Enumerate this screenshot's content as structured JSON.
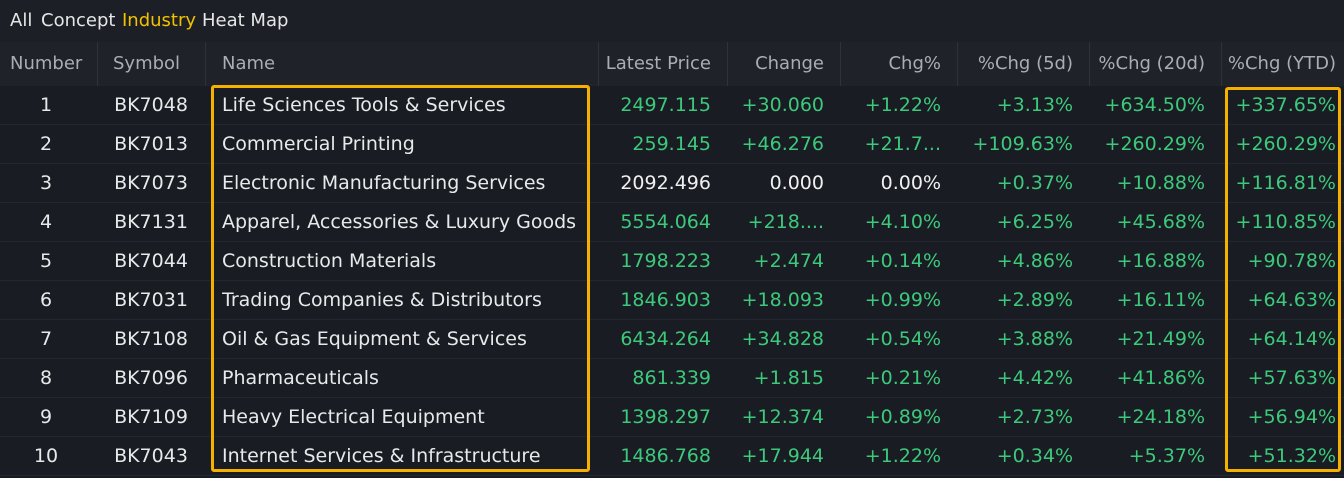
{
  "tabs": [
    "All",
    "Concept",
    "Industry",
    "Heat Map"
  ],
  "active_tab": 2,
  "table": {
    "headers": [
      "Number",
      "Symbol",
      "Name",
      "Latest Price",
      "Change",
      "Chg%",
      "%Chg (5d)",
      "%Chg (20d)",
      "%Chg (YTD)"
    ],
    "rows": [
      [
        "1",
        "BK7048",
        "Life Sciences Tools & Services",
        "2497.115",
        "+30.060",
        "+1.22%",
        "+3.13%",
        "+634.50%",
        "+337.65%"
      ],
      [
        "2",
        "BK7013",
        "Commercial Printing",
        "259.145",
        "+46.276",
        "+21.7...",
        "+109.63%",
        "+260.29%",
        "+260.29%"
      ],
      [
        "3",
        "BK7073",
        "Electronic Manufacturing Services",
        "2092.496",
        "0.000",
        "0.00%",
        "+0.37%",
        "+10.88%",
        "+116.81%"
      ],
      [
        "4",
        "BK7131",
        "Apparel, Accessories & Luxury Goods",
        "5554.064",
        "+218....",
        "+4.10%",
        "+6.25%",
        "+45.68%",
        "+110.85%"
      ],
      [
        "5",
        "BK7044",
        "Construction Materials",
        "1798.223",
        "+2.474",
        "+0.14%",
        "+4.86%",
        "+16.88%",
        "+90.78%"
      ],
      [
        "6",
        "BK7031",
        "Trading Companies & Distributors",
        "1846.903",
        "+18.093",
        "+0.99%",
        "+2.89%",
        "+16.11%",
        "+64.63%"
      ],
      [
        "7",
        "BK7108",
        "Oil & Gas Equipment & Services",
        "6434.264",
        "+34.828",
        "+0.54%",
        "+3.88%",
        "+21.49%",
        "+64.14%"
      ],
      [
        "8",
        "BK7096",
        "Pharmaceuticals",
        "861.339",
        "+1.815",
        "+0.21%",
        "+4.42%",
        "+41.86%",
        "+57.63%"
      ],
      [
        "9",
        "BK7109",
        "Heavy Electrical Equipment",
        "1398.297",
        "+12.374",
        "+0.89%",
        "+2.73%",
        "+24.18%",
        "+56.94%"
      ],
      [
        "10",
        "BK7043",
        "Internet Services & Infrastructure",
        "1486.768",
        "+17.944",
        "+1.22%",
        "+0.34%",
        "+5.37%",
        "+51.32%"
      ]
    ]
  }
}
